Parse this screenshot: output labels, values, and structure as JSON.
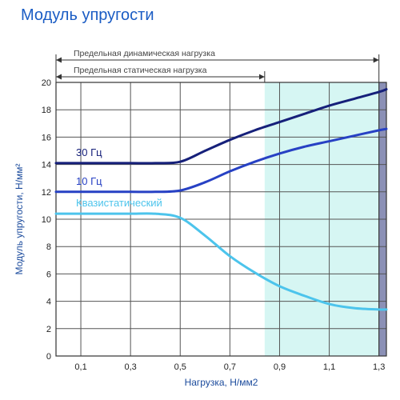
{
  "title": "Модуль упругости",
  "chart_data": {
    "type": "line",
    "title": "Модуль упругости",
    "xlabel": "Нагрузка, Н/мм2",
    "ylabel": "Модуль упругости, Н/мм²",
    "xlim": [
      0,
      1.33
    ],
    "ylim": [
      0,
      20
    ],
    "x_ticks": [
      0.1,
      0.3,
      0.5,
      0.7,
      0.9,
      1.1,
      1.3
    ],
    "x_tick_labels": [
      "0,1",
      "0,3",
      "0,5",
      "0,7",
      "0,9",
      "1,1",
      "1,3"
    ],
    "y_ticks": [
      0,
      2,
      4,
      6,
      8,
      10,
      12,
      14,
      16,
      18,
      20
    ],
    "y_tick_labels": [
      "0",
      "2",
      "4",
      "6",
      "8",
      "10",
      "12",
      "14",
      "16",
      "18",
      "20"
    ],
    "grid": true,
    "series": [
      {
        "name": "30 Гц",
        "color": "#16207a",
        "x": [
          0,
          0.1,
          0.2,
          0.3,
          0.4,
          0.5,
          0.6,
          0.7,
          0.8,
          0.9,
          1.0,
          1.1,
          1.2,
          1.3,
          1.33
        ],
        "y": [
          14.1,
          14.1,
          14.1,
          14.1,
          14.1,
          14.2,
          15.0,
          15.8,
          16.5,
          17.1,
          17.7,
          18.3,
          18.8,
          19.3,
          19.5
        ]
      },
      {
        "name": "10 Гц",
        "color": "#2741c4",
        "x": [
          0,
          0.1,
          0.2,
          0.3,
          0.4,
          0.5,
          0.6,
          0.7,
          0.8,
          0.9,
          1.0,
          1.1,
          1.2,
          1.3,
          1.33
        ],
        "y": [
          12.0,
          12.0,
          12.0,
          12.0,
          12.0,
          12.1,
          12.7,
          13.5,
          14.2,
          14.8,
          15.3,
          15.7,
          16.1,
          16.5,
          16.6
        ]
      },
      {
        "name": "Квазистатический",
        "color": "#4cc4ec",
        "x": [
          0,
          0.1,
          0.2,
          0.3,
          0.4,
          0.5,
          0.6,
          0.7,
          0.8,
          0.9,
          1.0,
          1.1,
          1.2,
          1.3,
          1.33
        ],
        "y": [
          10.4,
          10.4,
          10.4,
          10.4,
          10.4,
          10.1,
          8.8,
          7.3,
          6.1,
          5.1,
          4.4,
          3.8,
          3.5,
          3.4,
          3.4
        ]
      }
    ],
    "annotations": [
      {
        "label": "Предельная динамическая нагрузка",
        "x_from": 0,
        "x_to": 1.3
      },
      {
        "label": "Предельная статическая нагрузка",
        "x_from": 0,
        "x_to": 0.84
      }
    ],
    "shaded_regions": [
      {
        "x_from": 0.84,
        "x_to": 1.3,
        "color": "#d6f6f3"
      },
      {
        "x_from": 1.3,
        "x_to": 1.33,
        "color": "#8b90b6"
      }
    ]
  }
}
